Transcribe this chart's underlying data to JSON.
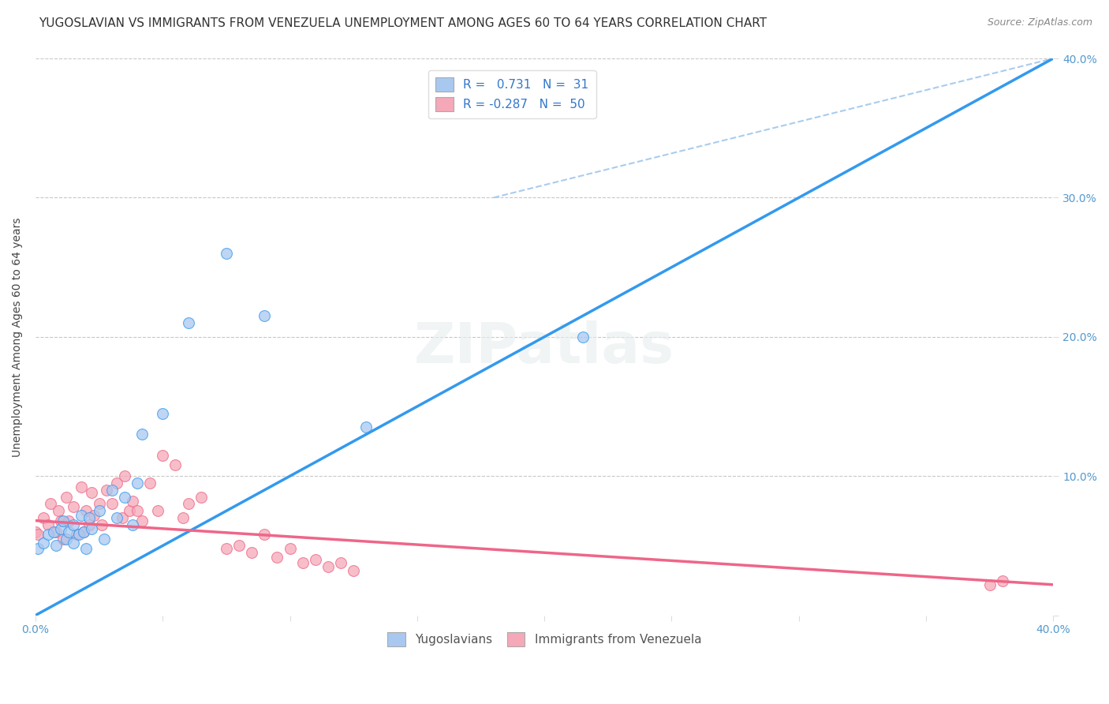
{
  "title": "YUGOSLAVIAN VS IMMIGRANTS FROM VENEZUELA UNEMPLOYMENT AMONG AGES 60 TO 64 YEARS CORRELATION CHART",
  "source": "Source: ZipAtlas.com",
  "ylabel": "Unemployment Among Ages 60 to 64 years",
  "xlim": [
    0.0,
    0.4
  ],
  "ylim": [
    0.0,
    0.4
  ],
  "x_ticks": [
    0.0,
    0.05,
    0.1,
    0.15,
    0.2,
    0.25,
    0.3,
    0.35,
    0.4
  ],
  "y_ticks_right": [
    0.0,
    0.1,
    0.2,
    0.3,
    0.4
  ],
  "y_ticks_grid": [
    0.1,
    0.2,
    0.3,
    0.4
  ],
  "blue_scatter_x": [
    0.001,
    0.003,
    0.005,
    0.007,
    0.008,
    0.01,
    0.011,
    0.012,
    0.013,
    0.015,
    0.015,
    0.017,
    0.018,
    0.019,
    0.02,
    0.021,
    0.022,
    0.025,
    0.027,
    0.03,
    0.032,
    0.035,
    0.038,
    0.04,
    0.042,
    0.05,
    0.06,
    0.075,
    0.09,
    0.13,
    0.215
  ],
  "blue_scatter_y": [
    0.048,
    0.052,
    0.058,
    0.06,
    0.05,
    0.062,
    0.068,
    0.055,
    0.06,
    0.052,
    0.065,
    0.058,
    0.072,
    0.06,
    0.048,
    0.07,
    0.062,
    0.075,
    0.055,
    0.09,
    0.07,
    0.085,
    0.065,
    0.095,
    0.13,
    0.145,
    0.21,
    0.26,
    0.215,
    0.135,
    0.2
  ],
  "pink_scatter_x": [
    0.0,
    0.001,
    0.003,
    0.005,
    0.006,
    0.008,
    0.009,
    0.01,
    0.011,
    0.012,
    0.013,
    0.015,
    0.016,
    0.018,
    0.019,
    0.02,
    0.021,
    0.022,
    0.023,
    0.025,
    0.026,
    0.028,
    0.03,
    0.032,
    0.034,
    0.035,
    0.037,
    0.038,
    0.04,
    0.042,
    0.045,
    0.048,
    0.05,
    0.055,
    0.058,
    0.06,
    0.065,
    0.075,
    0.08,
    0.085,
    0.09,
    0.095,
    0.1,
    0.105,
    0.11,
    0.115,
    0.12,
    0.125,
    0.375,
    0.38
  ],
  "pink_scatter_y": [
    0.06,
    0.058,
    0.07,
    0.065,
    0.08,
    0.06,
    0.075,
    0.068,
    0.055,
    0.085,
    0.068,
    0.078,
    0.058,
    0.092,
    0.06,
    0.075,
    0.065,
    0.088,
    0.072,
    0.08,
    0.065,
    0.09,
    0.08,
    0.095,
    0.07,
    0.1,
    0.075,
    0.082,
    0.075,
    0.068,
    0.095,
    0.075,
    0.115,
    0.108,
    0.07,
    0.08,
    0.085,
    0.048,
    0.05,
    0.045,
    0.058,
    0.042,
    0.048,
    0.038,
    0.04,
    0.035,
    0.038,
    0.032,
    0.022,
    0.025
  ],
  "blue_line_x": [
    0.0,
    0.4
  ],
  "blue_line_y": [
    0.0,
    0.4
  ],
  "pink_line_x": [
    0.0,
    0.4
  ],
  "pink_line_y": [
    0.068,
    0.022
  ],
  "diagonal_line_x": [
    0.18,
    0.4
  ],
  "diagonal_line_y": [
    0.3,
    0.4
  ],
  "background_color": "#ffffff",
  "grid_color": "#c8c8c8",
  "scatter_size": 100,
  "blue_color": "#a8c8f0",
  "pink_color": "#f5a8b8",
  "blue_line_color": "#3399ee",
  "pink_line_color": "#ee6688",
  "title_fontsize": 11,
  "label_fontsize": 10,
  "tick_fontsize": 10
}
